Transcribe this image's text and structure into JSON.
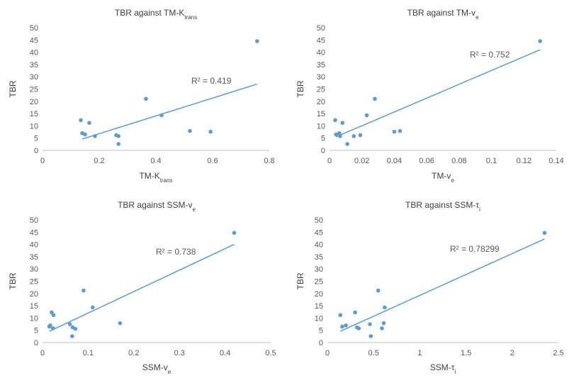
{
  "colors": {
    "points": "#5B9BD5",
    "trendline": "#5B9BD5",
    "axis": "#BFBFBF",
    "text": "#595959"
  },
  "chart_data": [
    {
      "type": "scatter",
      "title": {
        "main": "TBR against TM-K",
        "sub": "trans"
      },
      "xlabel": {
        "main": "TM-K",
        "sub": "trans"
      },
      "ylabel": "TBR",
      "xlim": [
        0,
        0.8
      ],
      "ylim": [
        0,
        50
      ],
      "xticks": [
        0,
        0.2,
        0.4,
        0.6,
        0.8
      ],
      "xtick_labels": [
        "0",
        "0.2",
        "0.4",
        "0.6",
        "0.8"
      ],
      "yticks": [
        0,
        5,
        10,
        15,
        20,
        25,
        30,
        35,
        40,
        45,
        50
      ],
      "ytick_labels": [
        "0",
        "5",
        "10",
        "15",
        "20",
        "25",
        "30",
        "35",
        "40",
        "45",
        "50"
      ],
      "points": [
        [
          0.135,
          12.3
        ],
        [
          0.14,
          7
        ],
        [
          0.15,
          6.5
        ],
        [
          0.165,
          11.2
        ],
        [
          0.185,
          5.8
        ],
        [
          0.26,
          6.2
        ],
        [
          0.268,
          5.8
        ],
        [
          0.268,
          2.6
        ],
        [
          0.365,
          21
        ],
        [
          0.42,
          14.3
        ],
        [
          0.52,
          7.9
        ],
        [
          0.593,
          7.6
        ],
        [
          0.757,
          44.5
        ]
      ],
      "trendline": [
        [
          0.14,
          4.6
        ],
        [
          0.757,
          27
        ]
      ],
      "r2": "R² = 0.419"
    },
    {
      "type": "scatter",
      "title": {
        "main": "TBR against TM-v",
        "sub": "e"
      },
      "xlabel": {
        "main": "TM-v",
        "sub": "e"
      },
      "ylabel": "TBR",
      "xlim": [
        0,
        0.14
      ],
      "ylim": [
        0,
        50
      ],
      "xticks": [
        0,
        0.02,
        0.04,
        0.06,
        0.08,
        0.1,
        0.12,
        0.14
      ],
      "xtick_labels": [
        "0",
        "0.02",
        "0.04",
        "0.06",
        "0.08",
        "0.1",
        "0.12",
        "0.14"
      ],
      "yticks": [
        0,
        5,
        10,
        15,
        20,
        25,
        30,
        35,
        40,
        45,
        50
      ],
      "ytick_labels": [
        "0",
        "5",
        "10",
        "15",
        "20",
        "25",
        "30",
        "35",
        "40",
        "45",
        "50"
      ],
      "points": [
        [
          0.0035,
          12.3
        ],
        [
          0.004,
          6.5
        ],
        [
          0.006,
          7
        ],
        [
          0.0065,
          5.8
        ],
        [
          0.008,
          11.2
        ],
        [
          0.011,
          2.6
        ],
        [
          0.015,
          5.8
        ],
        [
          0.019,
          6.2
        ],
        [
          0.023,
          14.3
        ],
        [
          0.028,
          21
        ],
        [
          0.04,
          7.6
        ],
        [
          0.0435,
          7.9
        ],
        [
          0.13,
          44.5
        ]
      ],
      "trendline": [
        [
          0.004,
          5.5
        ],
        [
          0.13,
          41
        ]
      ],
      "r2": "R² = 0.752"
    },
    {
      "type": "scatter",
      "title": {
        "main": "TBR against SSM-v",
        "sub": "e"
      },
      "xlabel": {
        "main": "SSM-v",
        "sub": "e"
      },
      "ylabel": "TBR",
      "xlim": [
        0,
        0.5
      ],
      "ylim": [
        0,
        50
      ],
      "xticks": [
        0,
        0.1,
        0.2,
        0.3,
        0.4,
        0.5
      ],
      "xtick_labels": [
        "0",
        "0.1",
        "0.2",
        "0.3",
        "0.4",
        "0.5"
      ],
      "yticks": [
        0,
        5,
        10,
        15,
        20,
        25,
        30,
        35,
        40,
        45,
        50
      ],
      "ytick_labels": [
        "0",
        "5",
        "10",
        "15",
        "20",
        "25",
        "30",
        "35",
        "40",
        "45",
        "50"
      ],
      "points": [
        [
          0.015,
          6.5
        ],
        [
          0.017,
          7
        ],
        [
          0.02,
          12.3
        ],
        [
          0.024,
          11.2
        ],
        [
          0.023,
          5.8
        ],
        [
          0.06,
          7.5
        ],
        [
          0.065,
          2.6
        ],
        [
          0.066,
          6.2
        ],
        [
          0.072,
          5.6
        ],
        [
          0.09,
          21.2
        ],
        [
          0.11,
          14.3
        ],
        [
          0.17,
          7.9
        ],
        [
          0.42,
          44.7
        ]
      ],
      "trendline": [
        [
          0.015,
          4.6
        ],
        [
          0.42,
          40
        ]
      ],
      "r2": "R² = 0.738"
    },
    {
      "type": "scatter",
      "title": {
        "main": "TBR against SSM-τ",
        "sub": "i"
      },
      "xlabel": {
        "main": "SSM-τ",
        "sub": "i"
      },
      "ylabel": "TBR",
      "xlim": [
        0,
        2.5
      ],
      "ylim": [
        0,
        50
      ],
      "xticks": [
        0,
        0.5,
        1,
        1.5,
        2,
        2.5
      ],
      "xtick_labels": [
        "0",
        "0.5",
        "1",
        "1.5",
        "2",
        "2.5"
      ],
      "yticks": [
        0,
        5,
        10,
        15,
        20,
        25,
        30,
        35,
        40,
        45,
        50
      ],
      "ytick_labels": [
        "0",
        "5",
        "10",
        "15",
        "20",
        "25",
        "30",
        "35",
        "40",
        "45",
        "50"
      ],
      "points": [
        [
          0.14,
          11.2
        ],
        [
          0.16,
          6.5
        ],
        [
          0.2,
          7
        ],
        [
          0.3,
          12.3
        ],
        [
          0.32,
          6.2
        ],
        [
          0.34,
          5.8
        ],
        [
          0.46,
          7.5
        ],
        [
          0.47,
          2.6
        ],
        [
          0.55,
          21.2
        ],
        [
          0.59,
          5.8
        ],
        [
          0.61,
          7.9
        ],
        [
          0.62,
          14.3
        ],
        [
          2.35,
          44.7
        ]
      ],
      "trendline": [
        [
          0.14,
          4.6
        ],
        [
          2.35,
          42.2
        ]
      ],
      "r2": "R² = 0.78299"
    }
  ]
}
